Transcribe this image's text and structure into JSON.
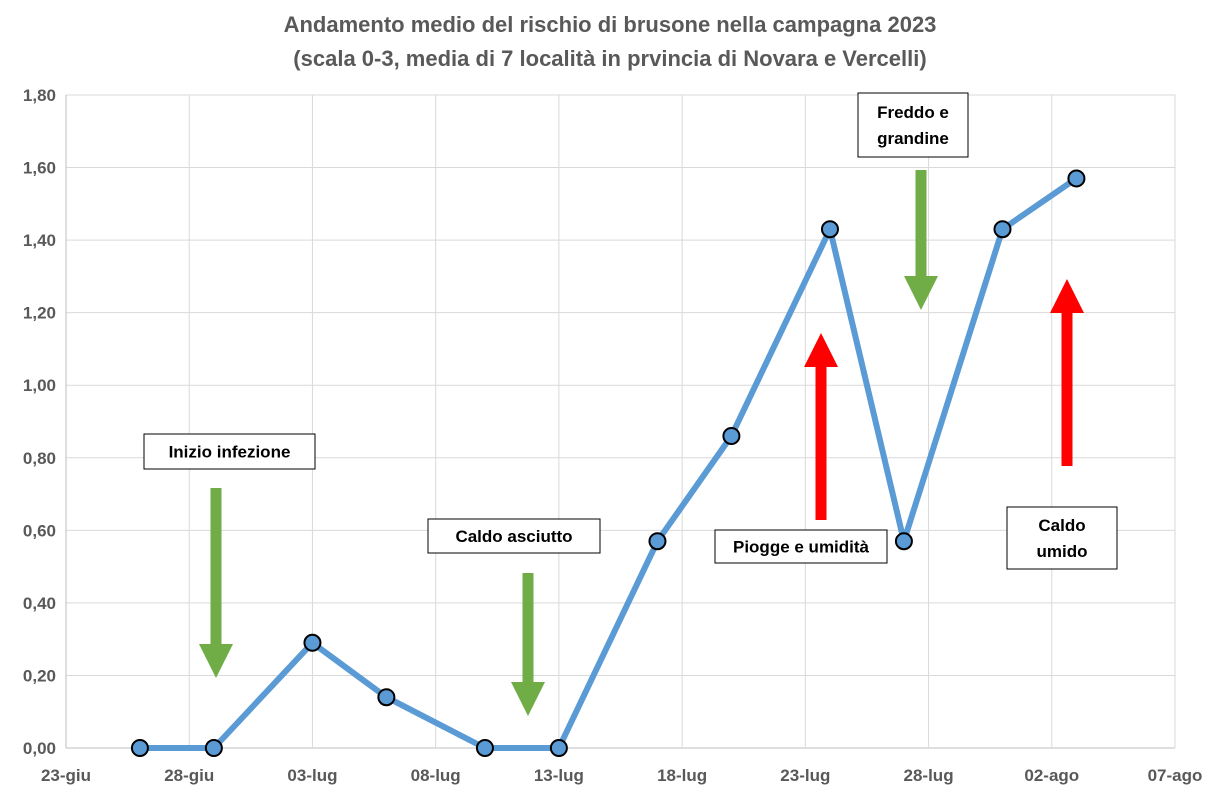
{
  "chart_data": {
    "type": "line",
    "title": "Andamento medio del rischio di brusone nella campagna 2023",
    "subtitle": "(scala 0-3, media di 7 località in prvincia di Novara e Vercelli)",
    "xlabel": "",
    "ylabel": "",
    "ylim": [
      0,
      1.8
    ],
    "xlim": [
      "2023-06-23",
      "2023-08-07"
    ],
    "y_ticks": [
      "0,00",
      "0,20",
      "0,40",
      "0,60",
      "0,80",
      "1,00",
      "1,20",
      "1,40",
      "1,60",
      "1,80"
    ],
    "x_ticks": [
      "23-giu",
      "28-giu",
      "03-lug",
      "08-lug",
      "13-lug",
      "18-lug",
      "23-lug",
      "28-lug",
      "02-ago",
      "07-ago"
    ],
    "x_tick_dates": [
      "2023-06-23",
      "2023-06-28",
      "2023-07-03",
      "2023-07-08",
      "2023-07-13",
      "2023-07-18",
      "2023-07-23",
      "2023-07-28",
      "2023-08-02",
      "2023-08-07"
    ],
    "grid": "horizontal and vertical",
    "legend": "none",
    "series": [
      {
        "color": "#5b9bd5",
        "marker_color": "#5b9bd5",
        "points": [
          {
            "x": "2023-06-26",
            "y": 0.0
          },
          {
            "x": "2023-06-29",
            "y": 0.0
          },
          {
            "x": "2023-07-03",
            "y": 0.29
          },
          {
            "x": "2023-07-06",
            "y": 0.14
          },
          {
            "x": "2023-07-10",
            "y": 0.0
          },
          {
            "x": "2023-07-13",
            "y": 0.0
          },
          {
            "x": "2023-07-17",
            "y": 0.57
          },
          {
            "x": "2023-07-20",
            "y": 0.86
          },
          {
            "x": "2023-07-24",
            "y": 1.43
          },
          {
            "x": "2023-07-27",
            "y": 0.57
          },
          {
            "x": "2023-07-31",
            "y": 1.43
          },
          {
            "x": "2023-08-03",
            "y": 1.57
          }
        ]
      }
    ],
    "annotations": [
      {
        "id": "inizio-infezione",
        "lines": [
          "Inizio infezione"
        ],
        "at_x": "2023-06-29",
        "arrow": "down",
        "arrow_color": "#70ad47"
      },
      {
        "id": "caldo-asciutto",
        "lines": [
          "Caldo  asciutto"
        ],
        "at_x": "2023-07-12",
        "arrow": "down",
        "arrow_color": "#70ad47"
      },
      {
        "id": "piogge-umidita",
        "lines": [
          "Piogge e umidità"
        ],
        "at_x": "2023-07-24",
        "arrow": "up",
        "arrow_color": "#ff0000"
      },
      {
        "id": "freddo-grandine",
        "lines": [
          "Freddo  e",
          "grandine"
        ],
        "at_x": "2023-07-28",
        "arrow": "down",
        "arrow_color": "#70ad47"
      },
      {
        "id": "caldo-umido",
        "lines": [
          "Caldo",
          "umido"
        ],
        "at_x": "2023-08-03",
        "arrow": "up",
        "arrow_color": "#ff0000"
      }
    ]
  }
}
